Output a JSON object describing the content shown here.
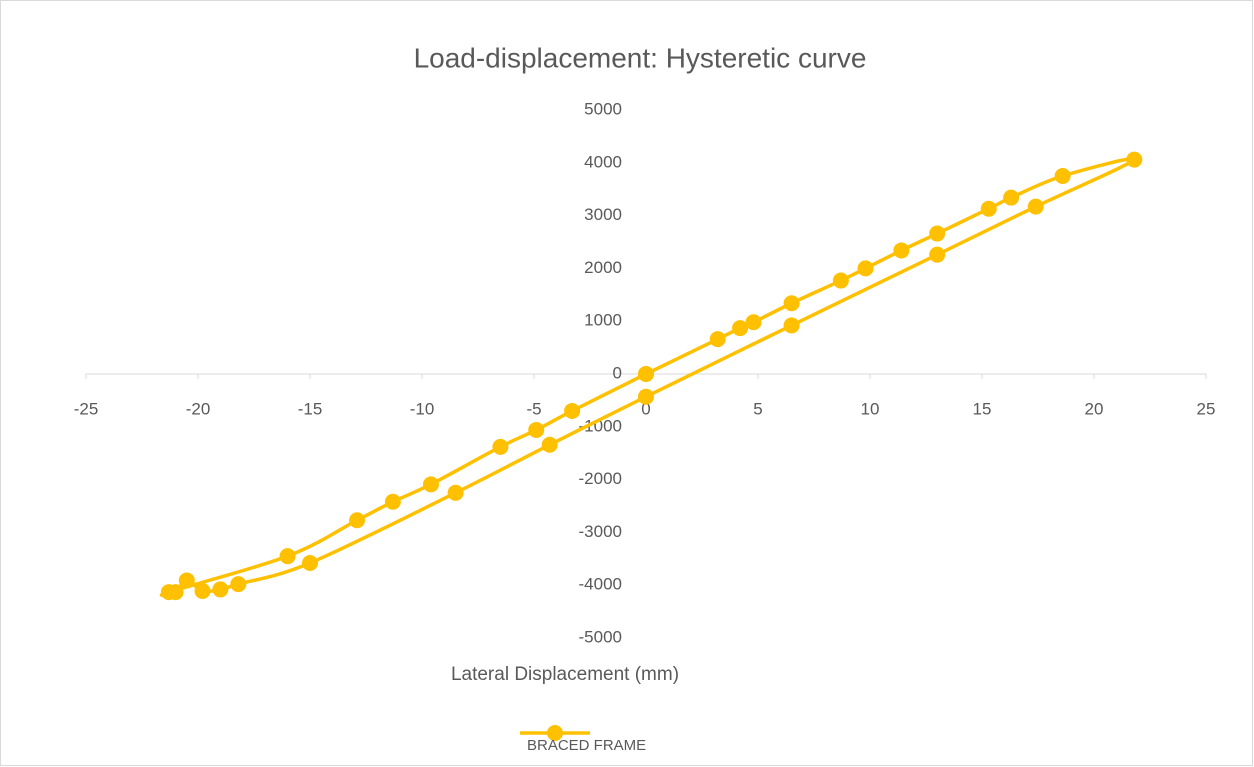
{
  "chart_data": {
    "type": "scatter-smooth",
    "title": "Load-displacement: Hysteretic curve",
    "x_label": "Lateral Displacement (mm)",
    "xlim": [
      -25,
      25
    ],
    "xticks": [
      -25,
      -20,
      -15,
      -10,
      -5,
      0,
      5,
      10,
      15,
      20,
      25
    ],
    "ylim": [
      -5000,
      5000
    ],
    "yticks": [
      -5000,
      -4000,
      -3000,
      -2000,
      -1000,
      0,
      1000,
      2000,
      3000,
      4000,
      5000
    ],
    "legend": "bottom",
    "series": [
      {
        "name": "BRACED FRAME",
        "color": "#ffc000",
        "x": [
          0,
          3.2,
          4.2,
          4.8,
          6.5,
          8.7,
          9.8,
          11.4,
          13,
          15.3,
          16.3,
          18.6,
          21.8,
          17.4,
          13,
          6.5,
          0,
          -4.3,
          -8.5,
          -15,
          -18.2,
          -19,
          -19.8,
          -20.5,
          -21,
          -21.3,
          -16,
          -12.9,
          -11.3,
          -9.6,
          -6.5,
          -4.9,
          -3.3,
          0
        ],
        "values": [
          0,
          660,
          870,
          980,
          1340,
          1770,
          2000,
          2340,
          2660,
          3130,
          3340,
          3750,
          4060,
          3170,
          2260,
          920,
          -430,
          -1340,
          -2250,
          -3580,
          -3980,
          -4080,
          -4110,
          -3910,
          -4130,
          -4130,
          -3450,
          -2770,
          -2420,
          -2090,
          -1380,
          -1060,
          -700,
          0
        ]
      }
    ]
  }
}
